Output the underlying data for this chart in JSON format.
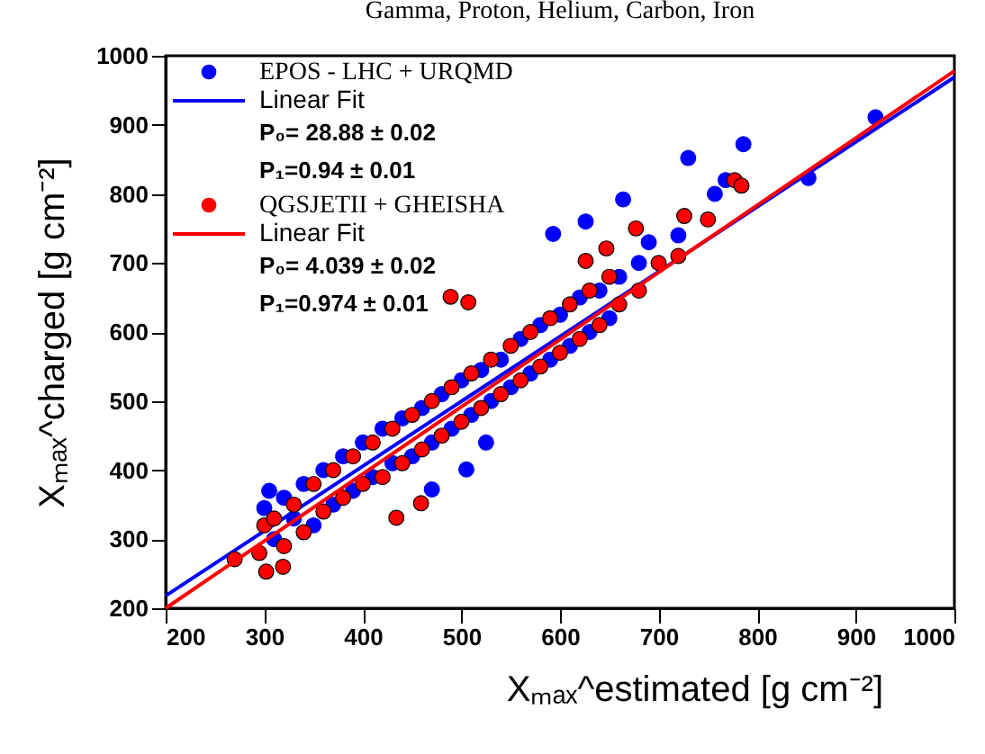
{
  "chart_data": {
    "type": "scatter",
    "title": "Gamma, Proton, Helium, Carbon, Iron",
    "xlabel": "Xₘₐₓ^estimated [g cm⁻²]",
    "ylabel": "Xₘₐₓ^charged [g cm⁻²]",
    "xlim": [
      200,
      1000
    ],
    "ylim": [
      200,
      1000
    ],
    "xticks": [
      200,
      300,
      400,
      500,
      600,
      700,
      800,
      900,
      1000
    ],
    "yticks": [
      200,
      300,
      400,
      500,
      600,
      700,
      800,
      900,
      1000
    ],
    "grid": false,
    "legend": "top left",
    "annotations": [
      "P₀= 28.88 ± 0.02",
      "P₁=0.94 ± 0.01",
      "P₀= 4.039 ± 0.02",
      "P₁=0.974 ± 0.01"
    ],
    "series": [
      {
        "name": "EPOS - LHC + URQMD",
        "marker": "circle",
        "color": "#0000ff",
        "x": [
          305,
          300,
          310,
          320,
          330,
          340,
          350,
          360,
          370,
          380,
          390,
          400,
          410,
          420,
          430,
          440,
          450,
          460,
          470,
          480,
          490,
          500,
          510,
          520,
          530,
          540,
          550,
          560,
          570,
          580,
          590,
          600,
          610,
          620,
          630,
          640,
          650,
          660,
          680,
          690,
          720,
          505,
          525,
          470,
          593,
          626,
          664,
          730,
          757,
          768,
          786,
          852,
          920
        ],
        "values": [
          370,
          345,
          300,
          360,
          330,
          380,
          320,
          400,
          350,
          420,
          370,
          440,
          390,
          460,
          410,
          475,
          420,
          490,
          440,
          510,
          460,
          530,
          480,
          545,
          500,
          560,
          520,
          590,
          540,
          610,
          560,
          625,
          580,
          650,
          600,
          660,
          620,
          680,
          700,
          730,
          740,
          401,
          440,
          372,
          742,
          760,
          792,
          852,
          800,
          820,
          872,
          823,
          911
        ]
      },
      {
        "name": "Linear Fit",
        "type": "line",
        "marker": "none",
        "color": "#0000ff",
        "x": [
          200,
          1000
        ],
        "values": [
          218,
          969
        ]
      },
      {
        "name": "QGSJETII + GHEISHA",
        "marker": "circle",
        "color": "#ff0000",
        "x": [
          295,
          300,
          310,
          320,
          330,
          340,
          350,
          360,
          370,
          380,
          390,
          400,
          410,
          420,
          430,
          440,
          450,
          460,
          470,
          480,
          490,
          500,
          510,
          520,
          530,
          540,
          550,
          560,
          570,
          580,
          590,
          600,
          610,
          620,
          630,
          640,
          650,
          660,
          680,
          700,
          720,
          302,
          319,
          434,
          459,
          270,
          489,
          507,
          626,
          647,
          677,
          726,
          750,
          777,
          784
        ],
        "values": [
          280,
          320,
          330,
          290,
          350,
          310,
          380,
          340,
          400,
          360,
          420,
          380,
          440,
          390,
          460,
          410,
          480,
          430,
          500,
          450,
          520,
          470,
          540,
          490,
          560,
          510,
          580,
          530,
          600,
          550,
          620,
          570,
          640,
          590,
          660,
          610,
          680,
          640,
          660,
          700,
          710,
          253,
          260,
          331,
          352,
          271,
          651,
          643,
          703,
          721,
          750,
          768,
          763,
          820,
          812
        ]
      },
      {
        "name": "Linear Fit",
        "type": "line",
        "marker": "none",
        "color": "#ff0000",
        "x": [
          200,
          1000
        ],
        "values": [
          200,
          978
        ]
      }
    ]
  }
}
